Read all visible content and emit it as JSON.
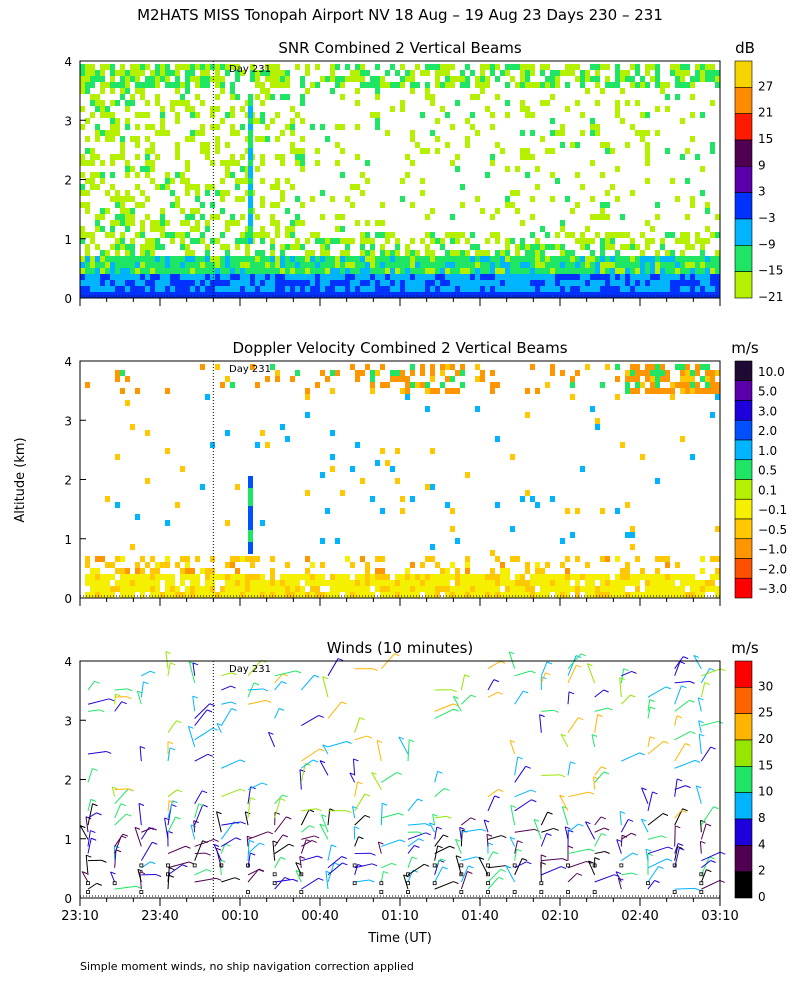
{
  "figure": {
    "title": "M2HATS MISS Tonopah Airport NV  18 Aug – 19 Aug 23 Days 230 – 231",
    "ylabel": "Altitude (km)",
    "xlabel": "Time (UT)",
    "footnote": "Simple moment winds, no ship navigation correction applied",
    "day_marker_label": "Day 231",
    "x_ticks": [
      "23:10",
      "23:40",
      "00:10",
      "00:40",
      "01:10",
      "01:40",
      "02:10",
      "02:40",
      "03:10"
    ],
    "y_ticks": [
      "0",
      "1",
      "2",
      "3",
      "4"
    ]
  },
  "chart_data": [
    {
      "type": "heatmap",
      "title": "SNR Combined 2 Vertical Beams",
      "xlim": [
        "23:10",
        "03:10"
      ],
      "ylim": [
        0,
        4
      ],
      "ylabel": "Altitude (km)",
      "day_marker_time": "00:00",
      "colorbar": {
        "unit": "dB",
        "labels": [
          "27",
          "21",
          "15",
          "9",
          "3",
          "−3",
          "−9",
          "−15",
          "−21"
        ],
        "colors": [
          "#f5d400",
          "#ff8c00",
          "#ff1a00",
          "#500050",
          "#5a00aa",
          "#0032ff",
          "#00b4ff",
          "#1ee664",
          "#b4f000"
        ]
      },
      "summary": "Strong SNR (-3 to 3 dB) below 0.5 km; weaker -15 to -21 dB echoes up to 4 km, densest before 00:30 and along a top layer near 3.7 km"
    },
    {
      "type": "heatmap",
      "title": "Doppler Velocity Combined 2 Vertical Beams",
      "xlim": [
        "23:10",
        "03:10"
      ],
      "ylim": [
        0,
        4
      ],
      "day_marker_time": "00:00",
      "colorbar": {
        "unit": "m/s",
        "labels": [
          "10.0",
          "5.0",
          "3.0",
          "2.0",
          "1.0",
          "0.5",
          "0.1",
          "−0.1",
          "−0.5",
          "−1.0",
          "−2.0",
          "−3.0"
        ],
        "colors": [
          "#1e0a32",
          "#5a00aa",
          "#1e00dc",
          "#0050ff",
          "#00b4ff",
          "#1ee664",
          "#b4f000",
          "#f5f000",
          "#ffc800",
          "#ff9600",
          "#ff5000",
          "#ff0000"
        ]
      },
      "summary": "Near-zero velocities (yellow) below 0.7 km; scattered updrafts up to 3 km near 00:10; mostly negative velocities (orange) aloft near 3.7 km"
    },
    {
      "type": "scatter",
      "title": "Winds (10 minutes)",
      "xlim": [
        "23:10",
        "03:10"
      ],
      "ylim": [
        0,
        4
      ],
      "day_marker_time": "00:00",
      "colorbar": {
        "unit": "m/s",
        "labels": [
          "30",
          "25",
          "20",
          "15",
          "10",
          "8",
          "4",
          "2",
          "0"
        ],
        "colors": [
          "#ff0000",
          "#ff6400",
          "#ffb400",
          "#96e600",
          "#1ee664",
          "#00b4ff",
          "#1e00dc",
          "#500050",
          "#000000"
        ]
      },
      "profile_times": [
        "23:13",
        "23:23",
        "23:33",
        "23:43",
        "23:53",
        "00:03",
        "00:13",
        "00:23",
        "00:33",
        "00:43",
        "00:53",
        "01:03",
        "01:13",
        "01:23",
        "01:33",
        "01:43",
        "01:53",
        "02:03",
        "02:13",
        "02:23",
        "02:33",
        "02:43",
        "02:53",
        "03:03"
      ],
      "summary": "Wind barbs every 10 minutes; mostly 4-15 m/s, stronger (20-30 m/s) in isolated barbs near 3.7 km around 23:40 and 02:25"
    }
  ]
}
